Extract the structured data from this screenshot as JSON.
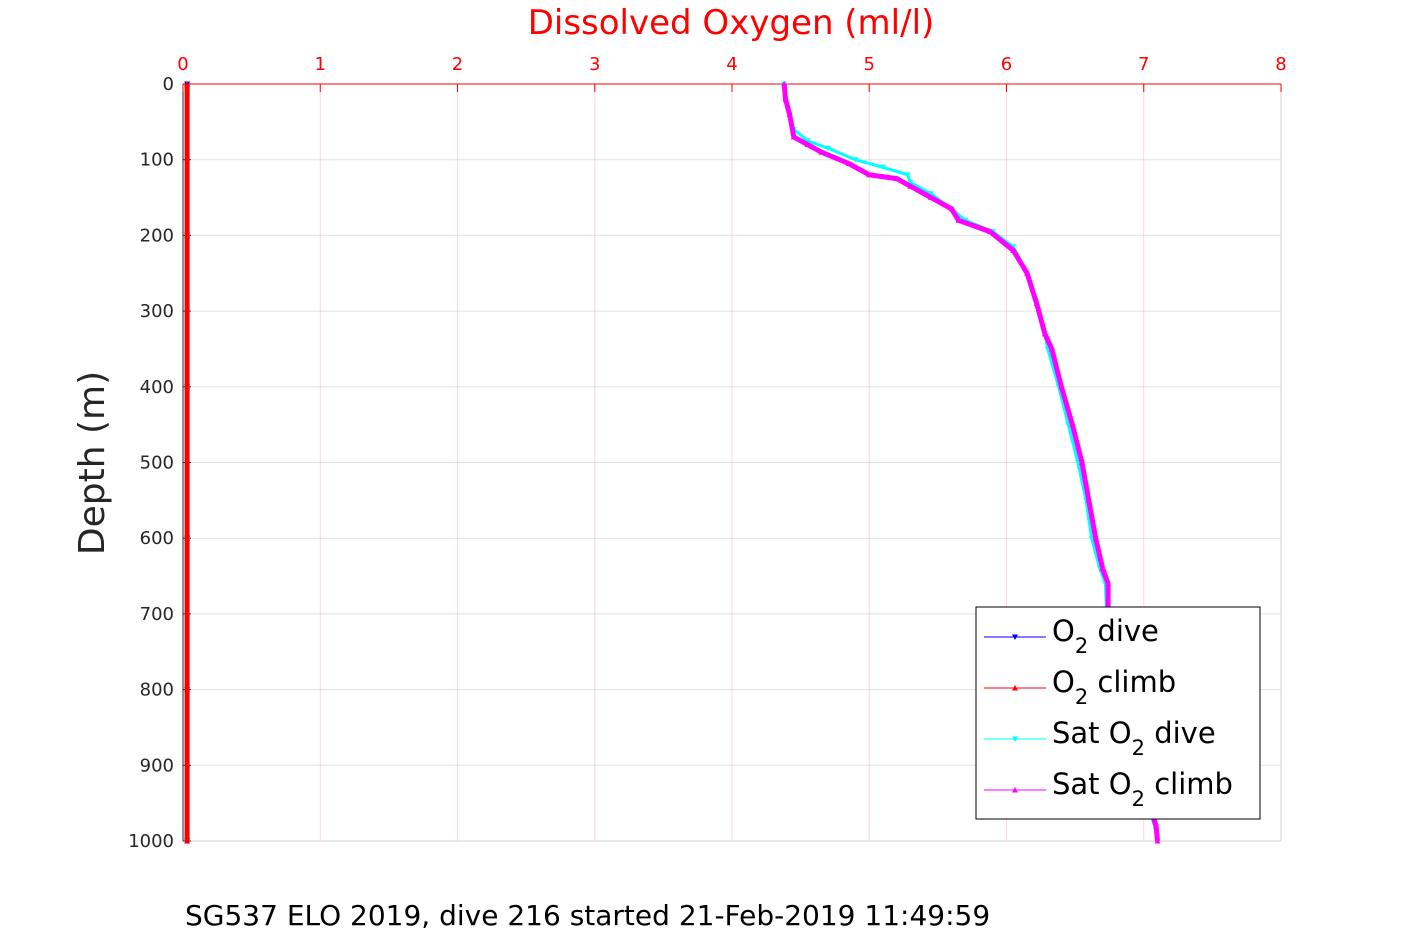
{
  "chart_data": {
    "type": "line",
    "title": "Dissolved Oxygen (ml/l)",
    "xlabel": "Dissolved Oxygen (ml/l)",
    "ylabel": "Depth (m)",
    "xlim": [
      0,
      8
    ],
    "ylim": [
      0,
      1000
    ],
    "y_reversed": true,
    "x_axis_position": "top",
    "x_ticks": [
      "0",
      "1",
      "2",
      "3",
      "4",
      "5",
      "6",
      "7",
      "8"
    ],
    "y_ticks": [
      "0",
      "100",
      "200",
      "300",
      "400",
      "500",
      "600",
      "700",
      "800",
      "900",
      "1000"
    ],
    "grid": true,
    "legend_position": "bottom-right",
    "series": [
      {
        "name": "O2 dive",
        "legend_main": "O",
        "legend_sub": "2",
        "legend_rest": " dive",
        "legend_pre": "",
        "color": "#0000ff",
        "marker": "triangle-down",
        "x": [
          0.03,
          0.03,
          0.03,
          0.03,
          0.03,
          0.03
        ],
        "y": [
          0,
          200,
          400,
          600,
          800,
          1000
        ]
      },
      {
        "name": "O2 climb",
        "legend_main": "O",
        "legend_sub": "2",
        "legend_rest": " climb",
        "legend_pre": "",
        "color": "#ff0000",
        "marker": "triangle-up",
        "x": [
          0.03,
          0.03,
          0.03,
          0.03,
          0.03,
          0.03
        ],
        "y": [
          0,
          200,
          400,
          600,
          800,
          1000
        ]
      },
      {
        "name": "Sat O2 dive",
        "legend_main": "O",
        "legend_sub": "2",
        "legend_rest": " dive",
        "legend_pre": "Sat ",
        "color": "#00ffff",
        "marker": "triangle-down",
        "x": [
          4.38,
          4.39,
          4.42,
          4.45,
          4.55,
          4.7,
          4.9,
          5.1,
          5.28,
          5.3,
          5.45,
          5.6,
          5.7,
          5.9,
          6.05,
          6.15,
          6.22,
          6.28,
          6.3,
          6.38,
          6.45,
          6.52,
          6.58,
          6.62,
          6.68,
          6.72,
          6.73,
          6.75,
          6.8,
          6.88,
          6.95,
          7.02,
          7.08,
          7.1
        ],
        "y": [
          0,
          20,
          40,
          60,
          75,
          85,
          100,
          110,
          120,
          130,
          145,
          165,
          180,
          195,
          215,
          250,
          290,
          330,
          350,
          400,
          450,
          500,
          550,
          600,
          640,
          660,
          700,
          750,
          800,
          850,
          900,
          950,
          980,
          1000
        ]
      },
      {
        "name": "Sat O2 climb",
        "legend_main": "O",
        "legend_sub": "2",
        "legend_rest": " climb",
        "legend_pre": "Sat ",
        "color": "#ff00ff",
        "marker": "triangle-up",
        "x": [
          4.38,
          4.39,
          4.42,
          4.45,
          4.55,
          4.65,
          4.85,
          5.0,
          5.2,
          5.3,
          5.45,
          5.6,
          5.65,
          5.88,
          6.05,
          6.15,
          6.22,
          6.28,
          6.33,
          6.4,
          6.48,
          6.55,
          6.6,
          6.65,
          6.7,
          6.74,
          6.74,
          6.76,
          6.82,
          6.9,
          6.97,
          7.04,
          7.09,
          7.1
        ],
        "y": [
          0,
          20,
          40,
          70,
          80,
          90,
          105,
          120,
          125,
          135,
          150,
          165,
          180,
          195,
          220,
          250,
          290,
          330,
          350,
          400,
          450,
          500,
          550,
          600,
          640,
          660,
          700,
          750,
          800,
          850,
          900,
          950,
          980,
          1000
        ]
      }
    ]
  },
  "footer": "SG537 ELO 2019, dive 216 started 21-Feb-2019 11:49:59"
}
